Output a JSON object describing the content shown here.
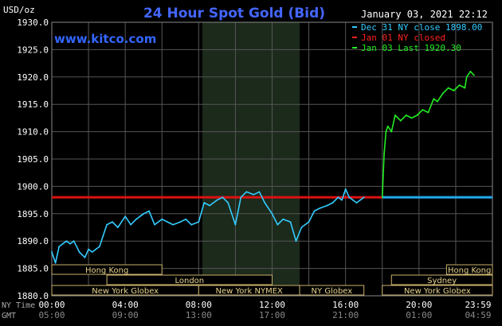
{
  "chart_data": {
    "type": "line",
    "title": "24 Hour Spot Gold (Bid)",
    "subtitle": "www.kitco.com",
    "timestamp": "January 03, 2021 22:12",
    "ylabel": "USD/oz",
    "ylim": [
      1880,
      1930
    ],
    "y_ticks": [
      "1930.0",
      "1925.0",
      "1920.0",
      "1915.0",
      "1910.0",
      "1905.0",
      "1900.0",
      "1895.0",
      "1890.0",
      "1885.0",
      "1880.0"
    ],
    "x_ticks_ny": [
      "00:00",
      "04:00",
      "08:00",
      "12:00",
      "16:00",
      "20:00",
      "23:59"
    ],
    "x_ticks_gmt": [
      "05:00",
      "09:00",
      "13:00",
      "17:00",
      "21:00",
      "01:00",
      "04:59"
    ],
    "x_axis_row_labels": [
      "NY Time",
      "GMT"
    ],
    "grid": true,
    "legend_position": "top-right",
    "legend": [
      {
        "label": "Dec 31 NY close 1898.00",
        "color": "#33ccff"
      },
      {
        "label": "Jan 01 NY closed",
        "color": "#ff2222"
      },
      {
        "label": "Jan 03 Last 1920.30",
        "color": "#22ee22"
      }
    ],
    "reference_line": {
      "value": 1898.0,
      "color_before": "#dd1111",
      "color_after": "#22aaee"
    },
    "sessions_row1": [
      {
        "label": "Hong Kong",
        "start_hour": 0,
        "end_hour": 6
      },
      {
        "label": "Hong Kong",
        "start_hour": 21.5,
        "end_hour": 24
      }
    ],
    "sessions_row2": [
      {
        "label": "London",
        "start_hour": 3,
        "end_hour": 12
      },
      {
        "label": "Sydney",
        "start_hour": 18.5,
        "end_hour": 24
      }
    ],
    "sessions_row3": [
      {
        "label": "New York Globex",
        "start_hour": 0,
        "end_hour": 8
      },
      {
        "label": "New York NYMEX",
        "start_hour": 8,
        "end_hour": 13.5
      },
      {
        "label": "NY Globex",
        "start_hour": 13.5,
        "end_hour": 17
      },
      {
        "label": "New York Globex",
        "start_hour": 18,
        "end_hour": 24
      }
    ],
    "highlight_band_hours": [
      8.2,
      13.5
    ],
    "series": [
      {
        "name": "Dec 31",
        "color": "#33ccff",
        "x_hours": [
          0,
          0.2,
          0.4,
          0.6,
          0.8,
          1.0,
          1.2,
          1.5,
          1.8,
          2.0,
          2.2,
          2.4,
          2.6,
          2.8,
          3.0,
          3.3,
          3.6,
          4.0,
          4.3,
          4.6,
          5.0,
          5.3,
          5.6,
          6.0,
          6.3,
          6.6,
          7.0,
          7.3,
          7.6,
          8.0,
          8.3,
          8.6,
          9.0,
          9.3,
          9.6,
          10.0,
          10.3,
          10.6,
          11.0,
          11.3,
          11.6,
          12.0,
          12.3,
          12.6,
          13.0,
          13.3,
          13.6,
          14.0,
          14.3,
          14.6,
          15.0,
          15.3,
          15.6,
          15.8,
          16.0,
          16.2,
          16.4,
          16.6,
          16.8,
          17.0
        ],
        "values": [
          1888.0,
          1886.0,
          1889.0,
          1889.5,
          1890.0,
          1889.5,
          1890.0,
          1888.0,
          1887.0,
          1888.5,
          1888.0,
          1888.5,
          1889.0,
          1891.0,
          1893.0,
          1893.5,
          1892.5,
          1894.5,
          1893.0,
          1894.0,
          1895.0,
          1895.5,
          1893.0,
          1894.0,
          1893.5,
          1893.0,
          1893.5,
          1894.0,
          1893.0,
          1893.5,
          1897.0,
          1896.5,
          1897.5,
          1898.0,
          1897.0,
          1893.0,
          1898.0,
          1899.0,
          1898.5,
          1899.0,
          1897.0,
          1895.0,
          1893.0,
          1894.0,
          1893.5,
          1890.0,
          1892.5,
          1893.5,
          1895.5,
          1896.0,
          1896.5,
          1897.0,
          1898.0,
          1897.5,
          1899.5,
          1898.0,
          1897.5,
          1897.0,
          1897.5,
          1898.0
        ]
      },
      {
        "name": "Jan 03",
        "color": "#22ee22",
        "x_hours": [
          18.0,
          18.05,
          18.1,
          18.2,
          18.3,
          18.5,
          18.7,
          19.0,
          19.3,
          19.6,
          19.9,
          20.2,
          20.5,
          20.8,
          21.0,
          21.3,
          21.6,
          21.9,
          22.2,
          22.5,
          22.6,
          22.8,
          23.0
        ],
        "values": [
          1898.0,
          1902.0,
          1906.0,
          1910.0,
          1911.0,
          1910.0,
          1913.0,
          1912.0,
          1913.0,
          1912.5,
          1913.0,
          1914.0,
          1913.5,
          1916.0,
          1915.5,
          1917.0,
          1918.0,
          1917.5,
          1918.5,
          1918.0,
          1920.0,
          1921.0,
          1920.3
        ]
      }
    ]
  }
}
